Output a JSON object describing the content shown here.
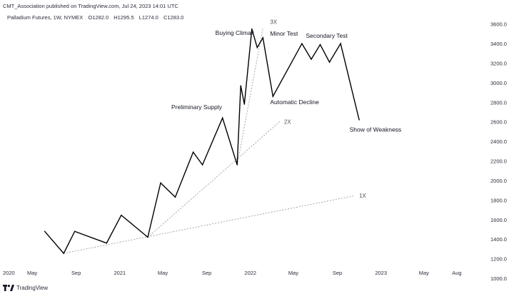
{
  "header": {
    "publisher_line": "CMT_Association published on TradingView.com, Jul 24, 2023 14:01 UTC",
    "symbol": "Palladium Futures, 1W, NYMEX",
    "open": "O1282.0",
    "high": "H1295.5",
    "low": "L1274.0",
    "close": "C1283.0"
  },
  "footer": {
    "brand": "TradingView",
    "logo_icon": "tradingview-logo-icon"
  },
  "chart_data": {
    "type": "line",
    "title": "",
    "xlabel": "",
    "ylabel": "",
    "ylim": [
      1000,
      3700
    ],
    "y_ticks": [
      1000,
      1200,
      1400,
      1600,
      1800,
      2000,
      2200,
      2400,
      2600,
      2800,
      3000,
      3200,
      3400,
      3600
    ],
    "y_tick_labels": [
      "1000.0",
      "1200.0",
      "1400.0",
      "1600.0",
      "1800.0",
      "2000.0",
      "2200.0",
      "2400.0",
      "2600.0",
      "2800.0",
      "3000.0",
      "3200.0",
      "3400.0",
      "3600.0"
    ],
    "x_range": [
      "2020-02-01",
      "2023-10-20"
    ],
    "x_ticks": [
      {
        "date": "2020-01-01",
        "label": "2020"
      },
      {
        "date": "2020-05-01",
        "label": "May"
      },
      {
        "date": "2020-09-01",
        "label": "Sep"
      },
      {
        "date": "2021-01-01",
        "label": "2021"
      },
      {
        "date": "2021-05-01",
        "label": "May"
      },
      {
        "date": "2021-09-01",
        "label": "Sep"
      },
      {
        "date": "2022-01-01",
        "label": "2022"
      },
      {
        "date": "2022-05-01",
        "label": "May"
      },
      {
        "date": "2022-09-01",
        "label": "Sep"
      },
      {
        "date": "2023-01-01",
        "label": "2023"
      },
      {
        "date": "2023-05-01",
        "label": "May"
      },
      {
        "date": "2023-08-01",
        "label": "Aug"
      }
    ],
    "grid": false,
    "line_color": "#000000",
    "fan_line_color": "#9e9e9e",
    "series": [
      {
        "points": [
          {
            "x": "2020-06-05",
            "y": 1480
          },
          {
            "x": "2020-07-28",
            "y": 1255
          },
          {
            "x": "2020-08-28",
            "y": 1480
          },
          {
            "x": "2020-11-25",
            "y": 1360
          },
          {
            "x": "2021-01-05",
            "y": 1645
          },
          {
            "x": "2021-03-20",
            "y": 1420
          },
          {
            "x": "2021-04-25",
            "y": 1975
          },
          {
            "x": "2021-06-05",
            "y": 1830
          },
          {
            "x": "2021-07-25",
            "y": 2290
          },
          {
            "x": "2021-08-20",
            "y": 2160
          },
          {
            "x": "2021-10-15",
            "y": 2640
          },
          {
            "x": "2021-11-25",
            "y": 2160
          },
          {
            "x": "2021-12-05",
            "y": 2970
          },
          {
            "x": "2021-12-15",
            "y": 2780
          },
          {
            "x": "2022-01-05",
            "y": 3550
          },
          {
            "x": "2022-01-20",
            "y": 3360
          },
          {
            "x": "2022-02-05",
            "y": 3460
          },
          {
            "x": "2022-03-05",
            "y": 2860
          },
          {
            "x": "2022-05-25",
            "y": 3400
          },
          {
            "x": "2022-06-20",
            "y": 3240
          },
          {
            "x": "2022-07-15",
            "y": 3390
          },
          {
            "x": "2022-08-10",
            "y": 3210
          },
          {
            "x": "2022-09-10",
            "y": 3400
          },
          {
            "x": "2022-11-01",
            "y": 2620
          }
        ]
      }
    ],
    "fan_lines": [
      {
        "label": "1X",
        "start": {
          "x": "2020-07-28",
          "y": 1255
        },
        "end": {
          "x": "2022-10-20",
          "y": 1845
        }
      },
      {
        "label": "2X",
        "start": {
          "x": "2021-03-20",
          "y": 1420
        },
        "end": {
          "x": "2022-03-25",
          "y": 2605
        }
      },
      {
        "label": "3X",
        "start": {
          "x": "2021-11-25",
          "y": 2160
        },
        "end": {
          "x": "2022-02-05",
          "y": 3560
        }
      }
    ],
    "annotations": [
      {
        "text": "Preliminary Supply",
        "x": "2021-05-25",
        "y": 2730
      },
      {
        "text": "Buying Climax",
        "x": "2021-09-25",
        "y": 3490
      },
      {
        "text": "3X",
        "x": "2022-02-25",
        "y": 3600
      },
      {
        "text": "Minor Test",
        "x": "2022-02-25",
        "y": 3480
      },
      {
        "text": "Secondary Test",
        "x": "2022-06-05",
        "y": 3460
      },
      {
        "text": "Automatic Decline",
        "x": "2022-02-25",
        "y": 2780
      },
      {
        "text": "2X",
        "x": "2022-04-05",
        "y": 2580
      },
      {
        "text": "Show of Weakness",
        "x": "2022-10-05",
        "y": 2500
      },
      {
        "text": "1X",
        "x": "2022-11-01",
        "y": 1825
      }
    ]
  }
}
